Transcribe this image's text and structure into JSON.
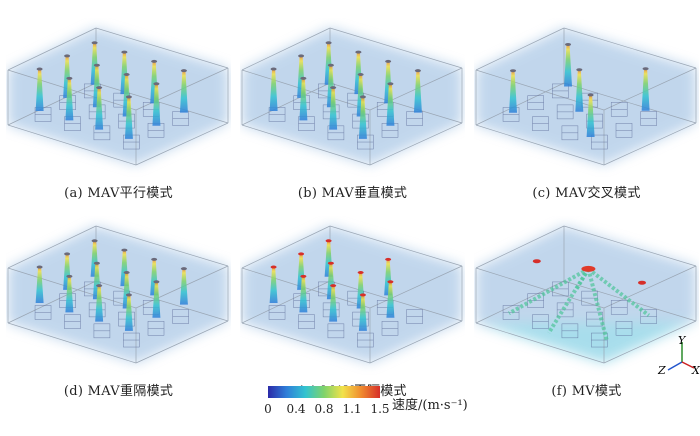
{
  "panels": [
    {
      "caption": "(a) MAV平行模式",
      "mode": "parallel"
    },
    {
      "caption": "(b) MAV垂直模式",
      "mode": "vertical"
    },
    {
      "caption": "(c) MAV交叉模式",
      "mode": "cross"
    },
    {
      "caption": "(d) MAV重隔模式",
      "mode": "heavy"
    },
    {
      "caption": "(e) MAV平隔模式",
      "mode": "flat"
    },
    {
      "caption": "(f) MV模式",
      "mode": "mv"
    }
  ],
  "colorbar": {
    "ticks": [
      "0",
      "0.4",
      "0.8",
      "1.1",
      "1.5"
    ],
    "label": "速度/(m·s⁻¹)",
    "colors": [
      "#2b2aa8",
      "#2f7fd9",
      "#32c3d0",
      "#7fd36a",
      "#f2e24a",
      "#f08a2e",
      "#d62f2a"
    ]
  },
  "axes": {
    "y": "Y",
    "z": "Z",
    "x": "X"
  }
}
